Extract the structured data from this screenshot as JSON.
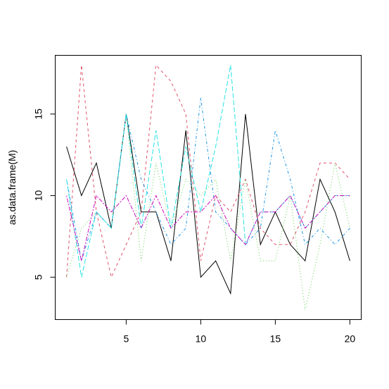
{
  "chart_data": {
    "type": "line",
    "title": "",
    "xlabel": "",
    "ylabel": "as.data.frame(M)",
    "xlim": [
      0.24,
      20.76
    ],
    "ylim": [
      2.4,
      18.6
    ],
    "xticks": [
      5,
      10,
      15,
      20
    ],
    "yticks": [
      5,
      10,
      15
    ],
    "grid": false,
    "legend": "none",
    "x": [
      1,
      2,
      3,
      4,
      5,
      6,
      7,
      8,
      9,
      10,
      11,
      12,
      13,
      14,
      15,
      16,
      17,
      18,
      19,
      20
    ],
    "series": [
      {
        "color": "#000000",
        "dash": "solid",
        "values": [
          13,
          10,
          12,
          8,
          15,
          9,
          9,
          6,
          14,
          5,
          6,
          4,
          15,
          7,
          9,
          7,
          6,
          11,
          9,
          6
        ]
      },
      {
        "color": "#DF536B",
        "dash": "dashed",
        "values": [
          5,
          18,
          9,
          5,
          7,
          9,
          18,
          17,
          15,
          6,
          10,
          9,
          11,
          8,
          7,
          7,
          9,
          12,
          12,
          11
        ]
      },
      {
        "color": "#61D04F",
        "dash": "dotted",
        "values": [
          5,
          8,
          9,
          8,
          15,
          6,
          12,
          8,
          11,
          10,
          11,
          6,
          11,
          6,
          6,
          10,
          3,
          7,
          12,
          8
        ]
      },
      {
        "color": "#2297E6",
        "dash": "dotdash",
        "values": [
          11,
          6,
          9,
          8,
          15,
          11,
          9,
          7,
          8,
          16,
          9,
          8,
          7,
          8,
          14,
          11,
          7,
          8,
          7,
          8
        ]
      },
      {
        "color": "#28E2E5",
        "dash": "longdash",
        "values": [
          11,
          5,
          9,
          8,
          15,
          8,
          14,
          8,
          13,
          9,
          13,
          18,
          7,
          9,
          9,
          10,
          8,
          9,
          10,
          10
        ]
      },
      {
        "color": "#CD0BBC",
        "dash": "twodash",
        "values": [
          10,
          6,
          10,
          9,
          10,
          8,
          10,
          8,
          9,
          9,
          10,
          8,
          7,
          9,
          9,
          10,
          8,
          9,
          10,
          10
        ]
      }
    ]
  }
}
